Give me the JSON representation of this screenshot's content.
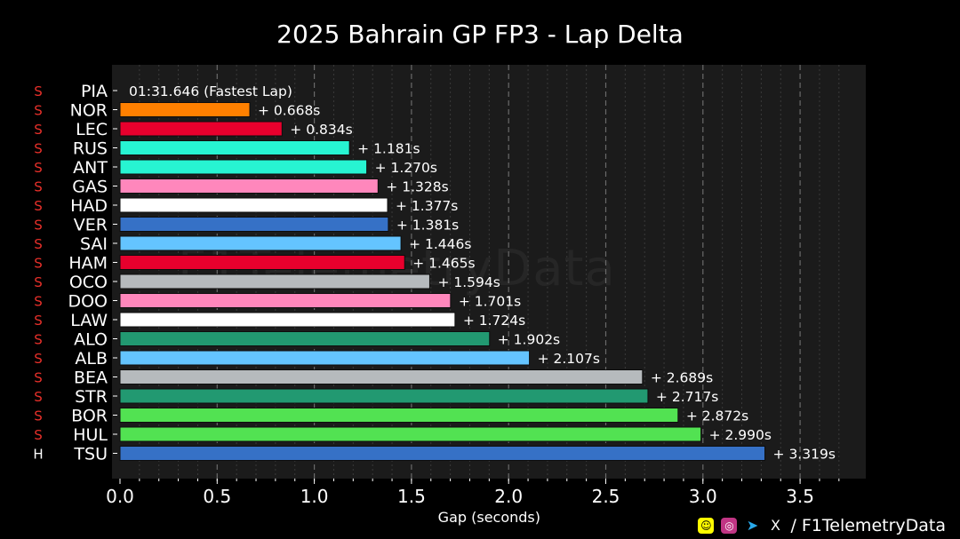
{
  "title": "2025 Bahrain GP FP3 - Lap Delta",
  "watermark": "F1TelemetryData",
  "footer": {
    "handle": "/ F1TelemetryData",
    "icons": [
      "snapchat-icon",
      "instagram-icon",
      "telegram-icon",
      "x-icon"
    ]
  },
  "chart_data": {
    "type": "bar",
    "orientation": "horizontal",
    "title": "2025 Bahrain GP FP3 - Lap Delta",
    "xlabel": "Gap (seconds)",
    "ylabel": "",
    "xlim": [
      0,
      3.8
    ],
    "xticks": [
      "0.0",
      "0.5",
      "1.0",
      "1.5",
      "2.0",
      "2.5",
      "3.0",
      "3.5"
    ],
    "grid": "vertical dashed",
    "fastest_lap_label": "01:31.646 (Fastest Lap)",
    "drivers": [
      {
        "code": "PIA",
        "tyre": "S",
        "gap": 0.0,
        "label": "",
        "color": "#ff8000"
      },
      {
        "code": "NOR",
        "tyre": "S",
        "gap": 0.668,
        "label": "+ 0.668s",
        "color": "#ff8000"
      },
      {
        "code": "LEC",
        "tyre": "S",
        "gap": 0.834,
        "label": "+ 0.834s",
        "color": "#e8002d"
      },
      {
        "code": "RUS",
        "tyre": "S",
        "gap": 1.181,
        "label": "+ 1.181s",
        "color": "#27f4d2"
      },
      {
        "code": "ANT",
        "tyre": "S",
        "gap": 1.27,
        "label": "+ 1.270s",
        "color": "#27f4d2"
      },
      {
        "code": "GAS",
        "tyre": "S",
        "gap": 1.328,
        "label": "+ 1.328s",
        "color": "#ff87bc"
      },
      {
        "code": "HAD",
        "tyre": "S",
        "gap": 1.377,
        "label": "+ 1.377s",
        "color": "#ffffff"
      },
      {
        "code": "VER",
        "tyre": "S",
        "gap": 1.381,
        "label": "+ 1.381s",
        "color": "#3671c6"
      },
      {
        "code": "SAI",
        "tyre": "S",
        "gap": 1.446,
        "label": "+ 1.446s",
        "color": "#64c4ff"
      },
      {
        "code": "HAM",
        "tyre": "S",
        "gap": 1.465,
        "label": "+ 1.465s",
        "color": "#e8002d"
      },
      {
        "code": "OCO",
        "tyre": "S",
        "gap": 1.594,
        "label": "+ 1.594s",
        "color": "#b6babd"
      },
      {
        "code": "DOO",
        "tyre": "S",
        "gap": 1.701,
        "label": "+ 1.701s",
        "color": "#ff87bc"
      },
      {
        "code": "LAW",
        "tyre": "S",
        "gap": 1.724,
        "label": "+ 1.724s",
        "color": "#ffffff"
      },
      {
        "code": "ALO",
        "tyre": "S",
        "gap": 1.902,
        "label": "+ 1.902s",
        "color": "#229971"
      },
      {
        "code": "ALB",
        "tyre": "S",
        "gap": 2.107,
        "label": "+ 2.107s",
        "color": "#64c4ff"
      },
      {
        "code": "BEA",
        "tyre": "S",
        "gap": 2.689,
        "label": "+ 2.689s",
        "color": "#b6babd"
      },
      {
        "code": "STR",
        "tyre": "S",
        "gap": 2.717,
        "label": "+ 2.717s",
        "color": "#229971"
      },
      {
        "code": "BOR",
        "tyre": "S",
        "gap": 2.872,
        "label": "+ 2.872s",
        "color": "#52e252"
      },
      {
        "code": "HUL",
        "tyre": "S",
        "gap": 2.99,
        "label": "+ 2.990s",
        "color": "#52e252"
      },
      {
        "code": "TSU",
        "tyre": "H",
        "gap": 3.319,
        "label": "+ 3.319s",
        "color": "#3671c6"
      }
    ],
    "tyre_colors": {
      "S": "#e8302a",
      "H": "#ffffff"
    }
  }
}
